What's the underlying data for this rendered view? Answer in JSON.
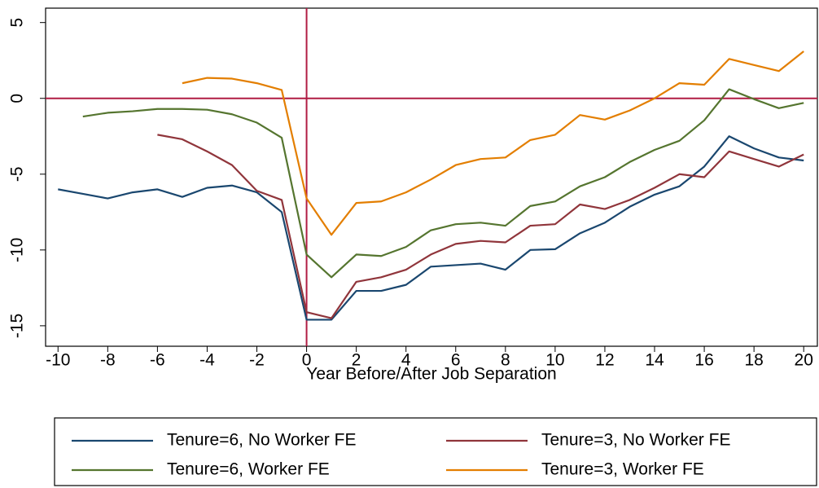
{
  "chart_data": {
    "type": "line",
    "x_label": "Year Before/After Job Separation",
    "x": [
      -10,
      -9,
      -8,
      -7,
      -6,
      -5,
      -4,
      -3,
      -2,
      -1,
      0,
      1,
      2,
      3,
      4,
      5,
      6,
      7,
      8,
      9,
      10,
      11,
      12,
      13,
      14,
      15,
      16,
      17,
      18,
      19,
      20
    ],
    "series": [
      {
        "name": "Tenure=6, No Worker FE",
        "color": "#1a476f",
        "values": [
          -6.0,
          -6.3,
          -6.6,
          -6.2,
          -6.0,
          -6.5,
          -5.9,
          -5.75,
          -6.2,
          -7.5,
          -14.6,
          -14.6,
          -12.7,
          -12.7,
          -12.3,
          -11.1,
          -11.0,
          -10.9,
          -11.3,
          -10.0,
          -9.95,
          -8.9,
          -8.2,
          -7.15,
          -6.35,
          -5.8,
          -4.5,
          -2.5,
          -3.3,
          -3.9,
          -4.1
        ]
      },
      {
        "name": "Tenure=3, No Worker FE",
        "color": "#90353b",
        "values": [
          null,
          null,
          null,
          null,
          -2.4,
          -2.7,
          -3.5,
          -4.4,
          -6.1,
          -6.7,
          -14.1,
          -14.5,
          -12.1,
          -11.8,
          -11.3,
          -10.3,
          -9.6,
          -9.4,
          -9.5,
          -8.4,
          -8.3,
          -7.0,
          -7.3,
          -6.7,
          -5.9,
          -5.0,
          -5.2,
          -3.5,
          -4.0,
          -4.5,
          -3.7
        ]
      },
      {
        "name": "Tenure=6, Worker FE",
        "color": "#55752f",
        "values": [
          null,
          -1.2,
          -0.95,
          -0.85,
          -0.7,
          -0.7,
          -0.75,
          -1.05,
          -1.6,
          -2.6,
          -10.3,
          -11.8,
          -10.3,
          -10.4,
          -9.8,
          -8.7,
          -8.3,
          -8.2,
          -8.4,
          -7.1,
          -6.8,
          -5.8,
          -5.2,
          -4.2,
          -3.4,
          -2.8,
          -1.45,
          0.6,
          -0.05,
          -0.65,
          -0.3
        ]
      },
      {
        "name": "Tenure=3, Worker FE",
        "color": "#e37e00",
        "values": [
          null,
          null,
          null,
          null,
          null,
          1.0,
          1.35,
          1.3,
          1.0,
          0.55,
          -6.6,
          -9.0,
          -6.9,
          -6.8,
          -6.2,
          -5.35,
          -4.4,
          -4.0,
          -3.9,
          -2.75,
          -2.4,
          -1.1,
          -1.4,
          -0.8,
          0,
          1.0,
          0.9,
          2.6,
          2.2,
          1.8,
          3.1
        ]
      }
    ],
    "xlim": [
      -10.5,
      20.55
    ],
    "ylim": [
      -16.35,
      5.95
    ],
    "xticks": [
      -10,
      -8,
      -6,
      -4,
      -2,
      0,
      2,
      4,
      6,
      8,
      10,
      12,
      14,
      16,
      18,
      20
    ],
    "yticks": [
      -15,
      -10,
      -5,
      0,
      5
    ],
    "vline": 0,
    "hline": 0,
    "ref_color": "#b01c44",
    "legend": "bottom"
  }
}
